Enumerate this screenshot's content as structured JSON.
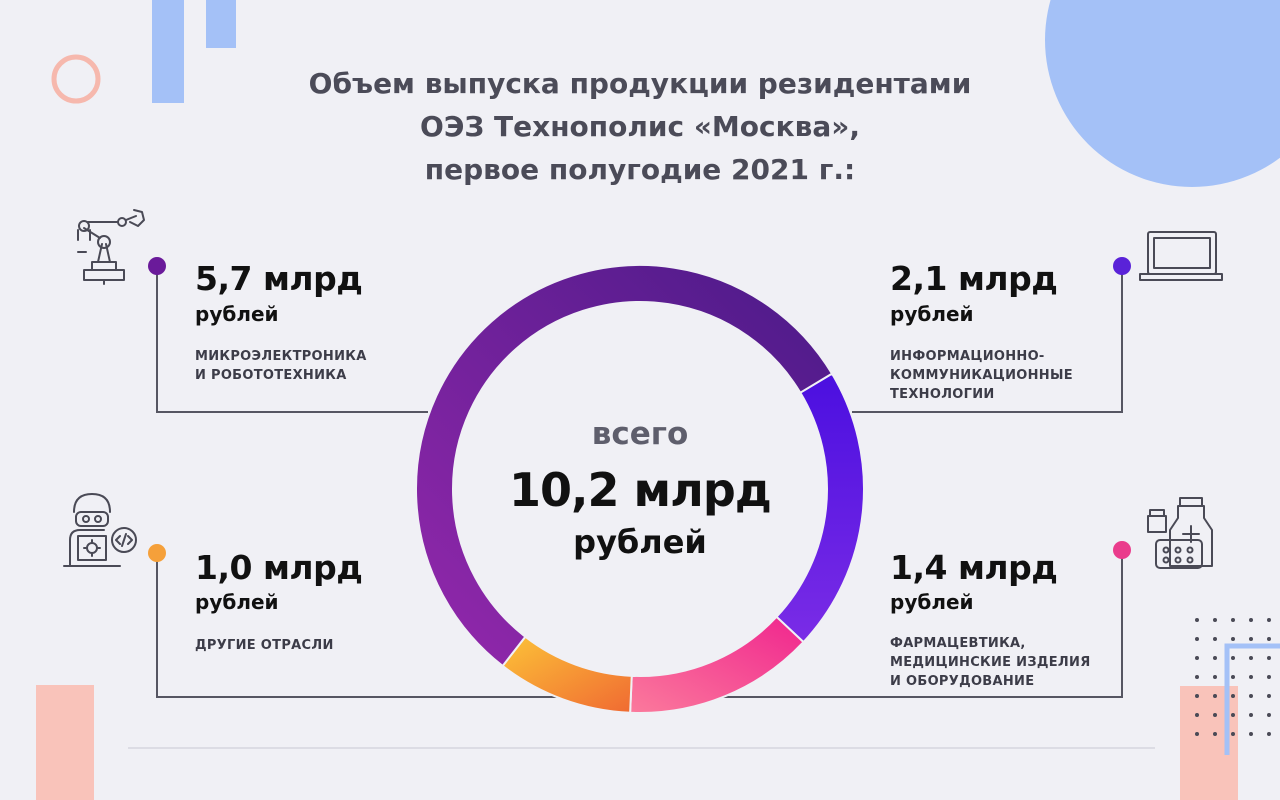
{
  "title": {
    "line1": "Объем выпуска продукции резидентами",
    "line2": "ОЭЗ Технополис «Москва»,",
    "line3": "первое полугодие 2021 г.:"
  },
  "center": {
    "label": "всего",
    "amount": "10,2 млрд",
    "unit": "рублей"
  },
  "chart_data": {
    "type": "pie",
    "total": 10.2,
    "categories": [
      "Микроэлектроника и робототехника",
      "Информационно-коммуникационные технологии",
      "Фармацевтика, медицинские изделия и оборудование",
      "Другие отрасли"
    ],
    "values": [
      5.7,
      2.1,
      1.4,
      1.0
    ],
    "colors": [
      "#7a22a8",
      "#5a1ee0",
      "#f0468c",
      "#f59a3c"
    ]
  },
  "segments": [
    {
      "amount": "5,7 млрд",
      "unit": "рублей",
      "category_lines": [
        "МИКРОЭЛЕКТРОНИКА",
        "И РОБОТОТЕХНИКА"
      ],
      "dot_color": "#6a1a9a",
      "icon": "robot-arm-icon"
    },
    {
      "amount": "2,1 млрд",
      "unit": "рублей",
      "category_lines": [
        "ИНФОРМАЦИОННО-",
        "КОММУНИКАЦИОННЫЕ",
        "ТЕХНОЛОГИИ"
      ],
      "dot_color": "#5a22d8",
      "icon": "laptop-icon"
    },
    {
      "amount": "1,4 млрд",
      "unit": "рублей",
      "category_lines": [
        "ФАРМАЦЕВТИКА,",
        "МЕДИЦИНСКИЕ ИЗДЕЛИЯ",
        "И ОБОРУДОВАНИЕ"
      ],
      "dot_color": "#ea3c8c",
      "icon": "medicine-icon"
    },
    {
      "amount": "1,0 млрд",
      "unit": "рублей",
      "category_lines": [
        "ДРУГИЕ ОТРАСЛИ"
      ],
      "dot_color": "#f5a03a",
      "icon": "developer-icon"
    }
  ]
}
